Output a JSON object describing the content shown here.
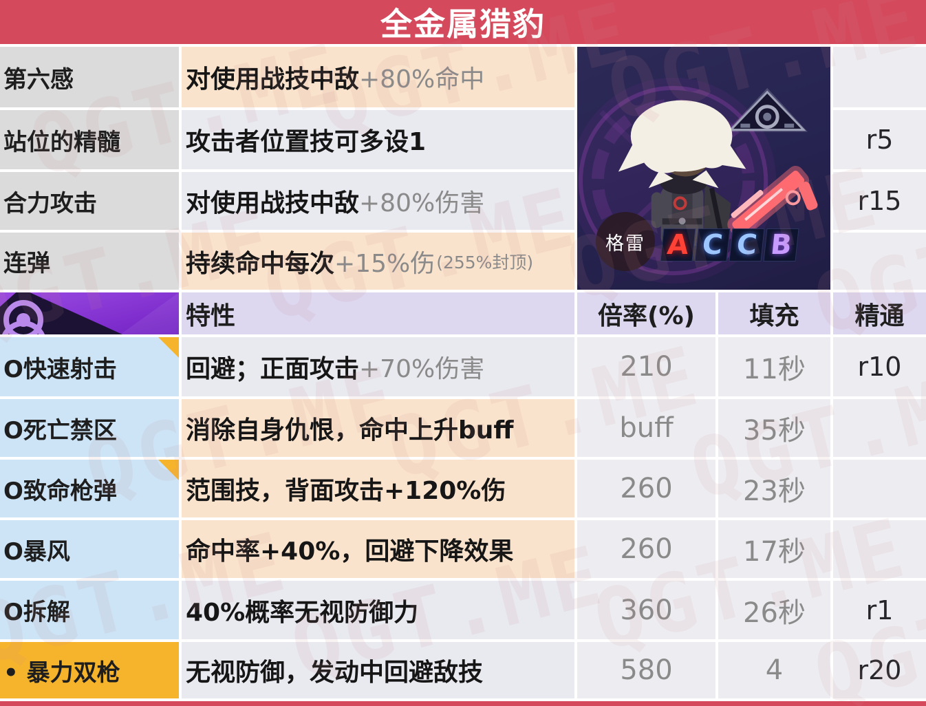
{
  "title": "全金属猎豹",
  "watermark": "QGT.ME",
  "colors": {
    "header_red": "#d4495c",
    "label_gray": "#dbdbdb",
    "peach": "#fae3cc",
    "plain": "#e9e9f0",
    "value_bg": "#ededf1",
    "purple_header": "#ddd7f0",
    "skill_blue": "#cce4f6",
    "skill_orange": "#f6b42c",
    "icon_purple": "#8a3ed6",
    "gray_text": "#8a8a8a"
  },
  "passives": [
    {
      "name": "第六感",
      "desc": "对使用战技中敌",
      "bonus": "+80%命中",
      "note": "",
      "mastery": ""
    },
    {
      "name": "站位的精髓",
      "desc": "攻击者位置技可多设1",
      "bonus": "",
      "note": "",
      "mastery": "r5"
    },
    {
      "name": "合力攻击",
      "desc": "对使用战技中敌",
      "bonus": "+80%伤害",
      "note": "",
      "mastery": "r15"
    },
    {
      "name": "连弹",
      "desc": "持续命中每次",
      "bonus": "+15%伤",
      "note": "(255%封顶)",
      "mastery": ""
    }
  ],
  "portrait": {
    "name": "格雷",
    "grades": [
      "A",
      "C",
      "C",
      "B"
    ]
  },
  "table_header": {
    "trait": "特性",
    "rate": "倍率(%)",
    "fill": "填充",
    "mastery": "精通"
  },
  "skills": [
    {
      "name": "O快速射击",
      "flag": true,
      "desc": "回避；正面攻击",
      "bonus": "+70%伤害",
      "rate": "210",
      "fill": "11秒",
      "mastery": "r10"
    },
    {
      "name": "O死亡禁区",
      "flag": false,
      "desc": "消除自身仇恨，命中上升buff",
      "bonus": "",
      "rate": "buff",
      "fill": "35秒",
      "mastery": ""
    },
    {
      "name": "O致命枪弹",
      "flag": true,
      "desc": "范围技，背面攻击+120%伤",
      "bonus": "",
      "rate": "260",
      "fill": "23秒",
      "mastery": ""
    },
    {
      "name": "O暴风",
      "flag": false,
      "desc": "命中率+40%，回避下降效果",
      "bonus": "",
      "rate": "260",
      "fill": "17秒",
      "mastery": ""
    },
    {
      "name": "O拆解",
      "flag": false,
      "desc": "40%概率无视防御力",
      "bonus": "",
      "rate": "360",
      "fill": "26秒",
      "mastery": "r1"
    },
    {
      "name": "• 暴力双枪",
      "flag": false,
      "desc": "无视防御，发动中回避敌技",
      "bonus": "",
      "rate": "580",
      "fill": "4",
      "mastery": "r20"
    }
  ]
}
